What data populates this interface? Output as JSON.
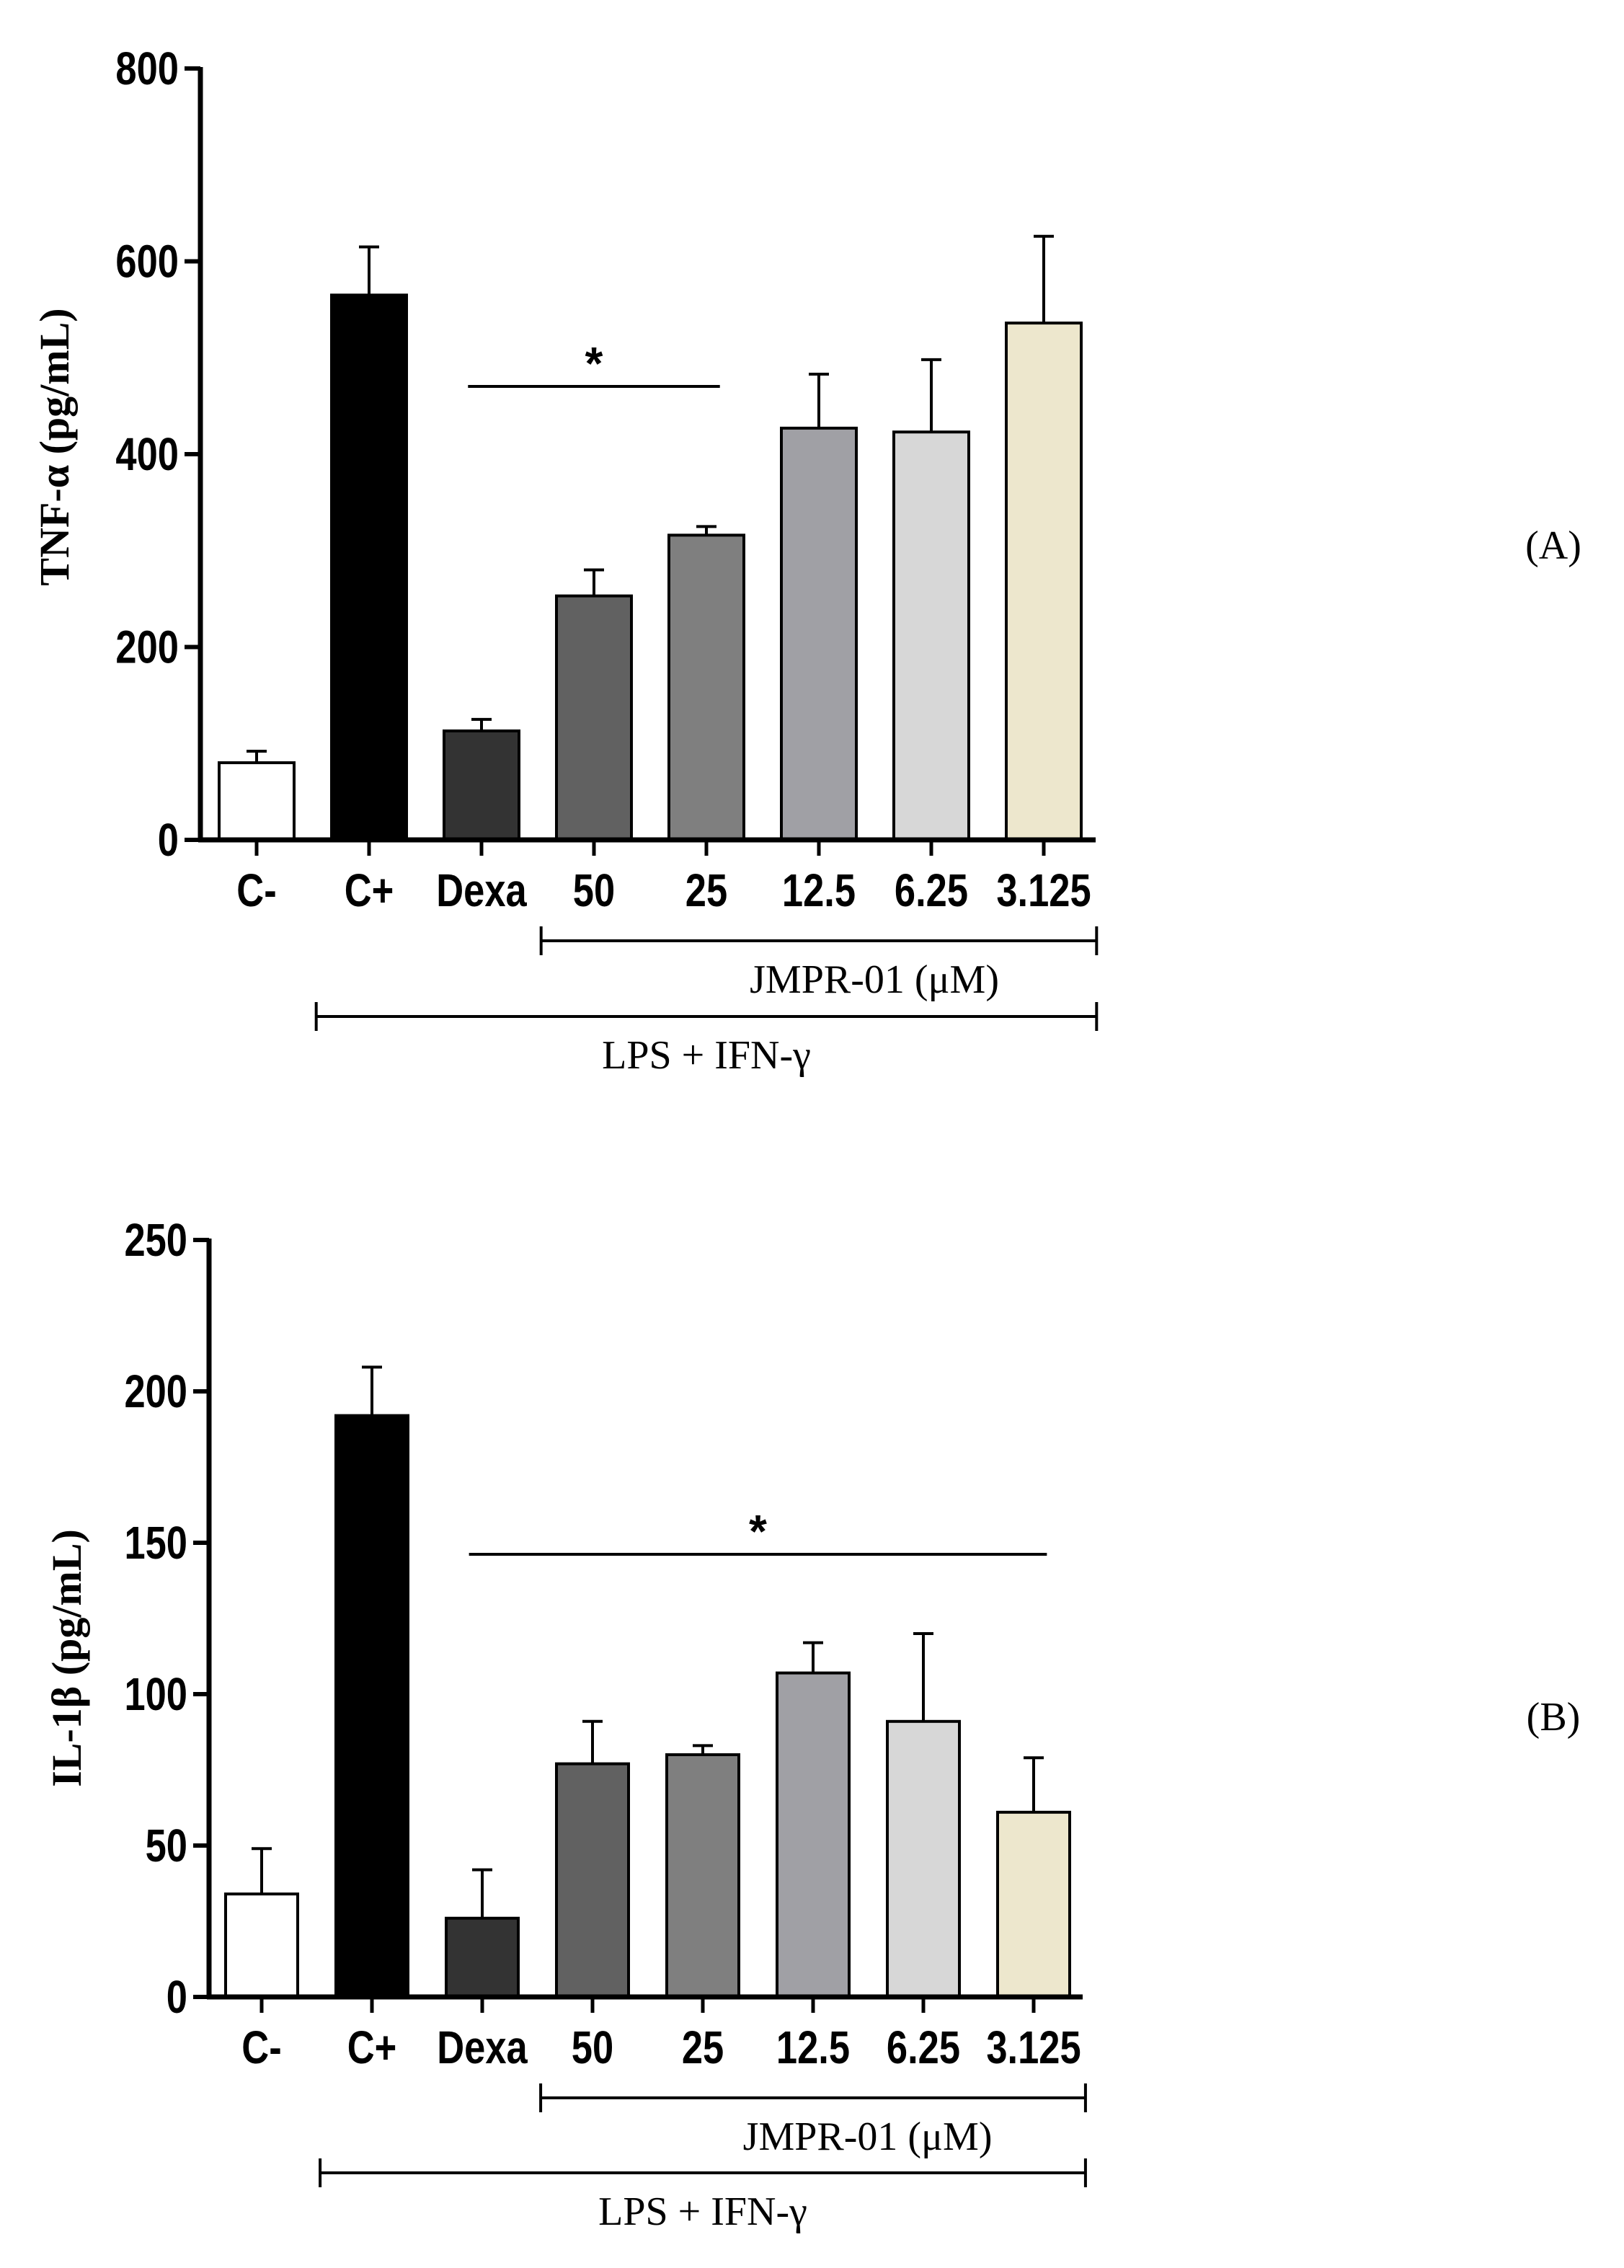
{
  "chart_data": [
    {
      "type": "bar",
      "panel_label": "(A)",
      "ylabel": "TNF-α (pg/mL)",
      "ylim": [
        0,
        800
      ],
      "yticks": [
        "0",
        "200",
        "400",
        "600",
        "800"
      ],
      "categories": [
        "C-",
        "C+",
        "Dexa",
        "50",
        "25",
        "12.5",
        "6.25",
        "3.125"
      ],
      "values": [
        80,
        565,
        113,
        253,
        316,
        427,
        423,
        536
      ],
      "errors": [
        12,
        50,
        12,
        27,
        9,
        56,
        75,
        90
      ],
      "colors": [
        "#ffffff",
        "#000000",
        "#333333",
        "#616161",
        "#7f7f7f",
        "#a0a0a5",
        "#d7d7d7",
        "#ede7cd"
      ],
      "significance": {
        "label": "*",
        "from_category": "Dexa",
        "to_category": "25"
      },
      "groups": [
        {
          "label": "JMPR-01 (μM)",
          "from_category": "50",
          "to_category": "3.125"
        },
        {
          "label": "LPS  + IFN-γ",
          "from_category": "C+",
          "to_category": "3.125"
        }
      ]
    },
    {
      "type": "bar",
      "panel_label": "(B)",
      "ylabel": "IL-1β (pg/mL)",
      "ylim": [
        0,
        250
      ],
      "yticks": [
        "0",
        "50",
        "100",
        "150",
        "200",
        "250"
      ],
      "categories": [
        "C-",
        "C+",
        "Dexa",
        "50",
        "25",
        "12.5",
        "6.25",
        "3.125"
      ],
      "values": [
        34,
        192,
        26,
        77,
        80,
        107,
        91,
        61
      ],
      "errors": [
        15,
        16,
        16,
        14,
        3,
        10,
        29,
        18
      ],
      "colors": [
        "#ffffff",
        "#000000",
        "#333333",
        "#616161",
        "#7f7f7f",
        "#a0a0a5",
        "#d7d7d7",
        "#ede7cd"
      ],
      "significance": {
        "label": "*",
        "from_category": "Dexa",
        "to_category": "3.125"
      },
      "groups": [
        {
          "label": "JMPR-01 (μM)",
          "from_category": "50",
          "to_category": "3.125"
        },
        {
          "label": "LPS + IFN-γ",
          "from_category": "C+",
          "to_category": "3.125"
        }
      ]
    }
  ]
}
